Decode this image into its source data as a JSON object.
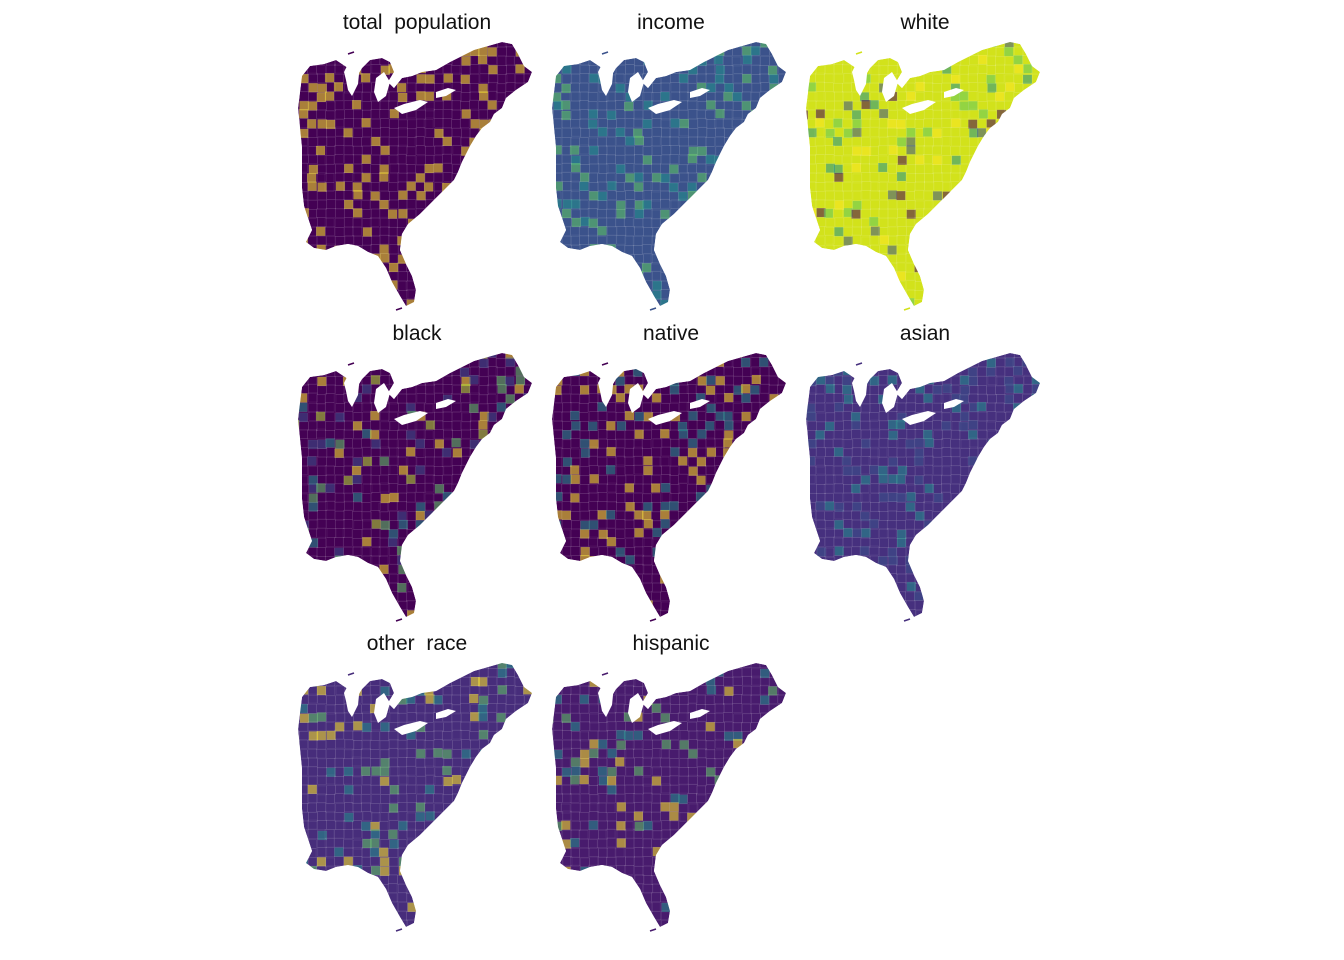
{
  "panels": [
    {
      "title": "total  population",
      "colors": {
        "base": "#440154",
        "accent": [
          "#fde725"
        ]
      }
    },
    {
      "title": "income",
      "colors": {
        "base": "#3b528b",
        "accent": [
          "#21918c",
          "#5ec962"
        ]
      }
    },
    {
      "title": "white",
      "colors": {
        "base": "#d2e21b",
        "accent": [
          "#fde725",
          "#5ec962",
          "#21918c",
          "#3b528b",
          "#440154"
        ]
      }
    },
    {
      "title": "black",
      "colors": {
        "base": "#440154",
        "accent": [
          "#3b528b",
          "#21918c",
          "#5ec962",
          "#b5de2b",
          "#fde725"
        ]
      }
    },
    {
      "title": "native",
      "colors": {
        "base": "#440154",
        "accent": [
          "#fde725",
          "#21918c"
        ]
      }
    },
    {
      "title": "asian",
      "colors": {
        "base": "#46307e",
        "accent": [
          "#21918c",
          "#3b528b"
        ]
      }
    },
    {
      "title": "other  race",
      "colors": {
        "base": "#472d7b",
        "accent": [
          "#21918c",
          "#5ec962",
          "#fde725"
        ]
      }
    },
    {
      "title": "hispanic",
      "colors": {
        "base": "#481b6d",
        "accent": [
          "#21918c",
          "#5ec962",
          "#fde725"
        ]
      }
    }
  ],
  "palette": "viridis"
}
